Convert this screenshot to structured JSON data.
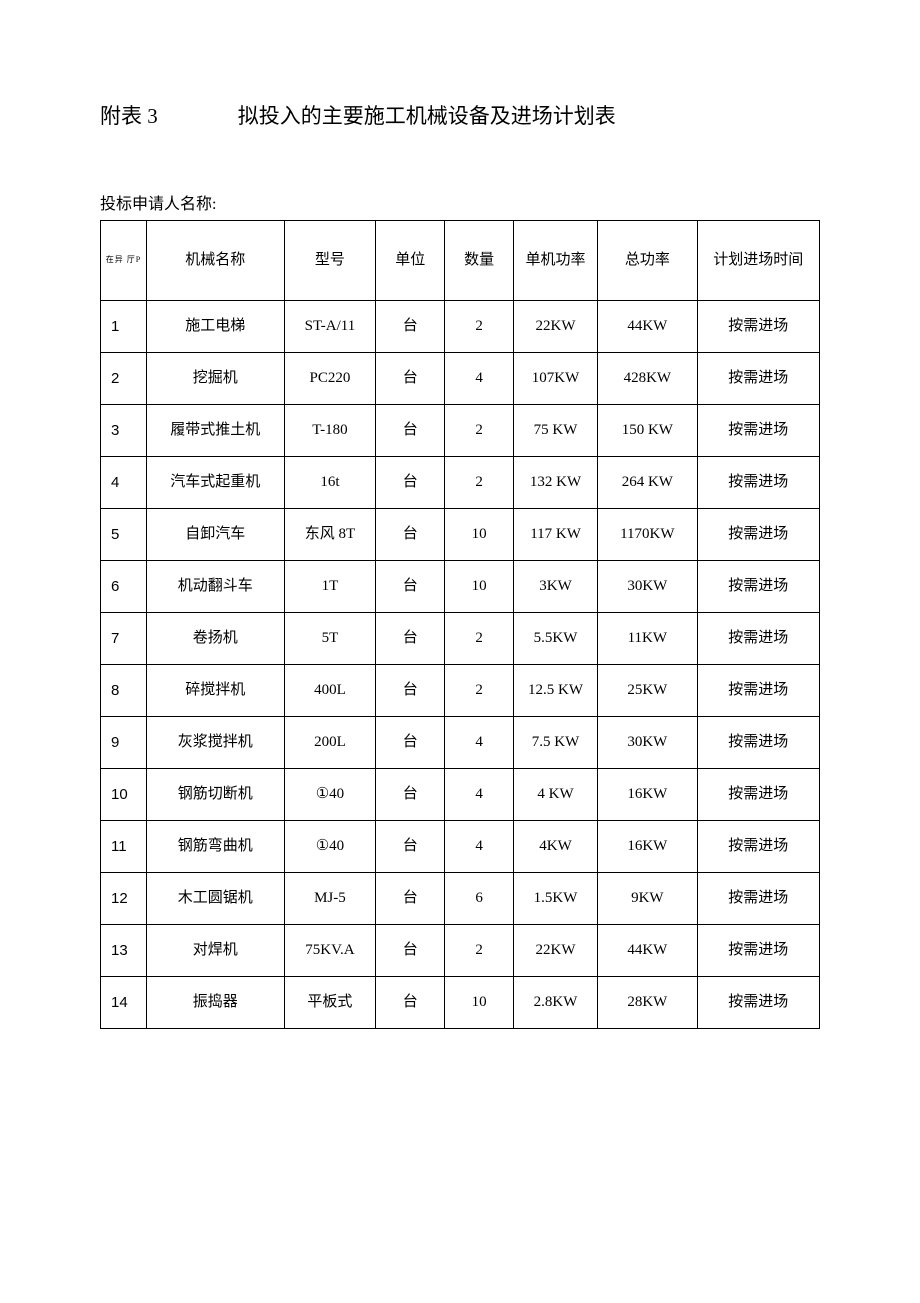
{
  "title": {
    "prefix": "附表 3",
    "main": "拟投入的主要施工机械设备及进场计划表"
  },
  "subtitle": "投标申请人名称:",
  "table": {
    "columns": [
      {
        "key": "seq",
        "label": "在异 厅P",
        "class": "col-seq seq-header"
      },
      {
        "key": "name",
        "label": "机械名称",
        "class": "col-name"
      },
      {
        "key": "model",
        "label": "型号",
        "class": "col-model"
      },
      {
        "key": "unit",
        "label": "单位",
        "class": "col-unit"
      },
      {
        "key": "qty",
        "label": "数量",
        "class": "col-qty"
      },
      {
        "key": "power",
        "label": "单机功率",
        "class": "col-power"
      },
      {
        "key": "total",
        "label": "总功率",
        "class": "col-total"
      },
      {
        "key": "plan",
        "label": "计划进场时间",
        "class": "col-plan"
      }
    ],
    "rows": [
      {
        "seq": "1",
        "name": "施工电梯",
        "model": "ST-A/11",
        "unit": "台",
        "qty": "2",
        "power": "22KW",
        "total": "44KW",
        "plan": "按需进场"
      },
      {
        "seq": "2",
        "name": "挖掘机",
        "model": "PC220",
        "unit": "台",
        "qty": "4",
        "power": "107KW",
        "total": "428KW",
        "plan": "按需进场"
      },
      {
        "seq": "3",
        "name": "履带式推土机",
        "model": "T-180",
        "unit": "台",
        "qty": "2",
        "power": "75 KW",
        "total": "150 KW",
        "plan": "按需进场"
      },
      {
        "seq": "4",
        "name": "汽车式起重机",
        "model": "16t",
        "unit": "台",
        "qty": "2",
        "power": "132 KW",
        "total": "264 KW",
        "plan": "按需进场"
      },
      {
        "seq": "5",
        "name": "自卸汽车",
        "model": "东风 8T",
        "unit": "台",
        "qty": "10",
        "power": "117 KW",
        "total": "1170KW",
        "plan": "按需进场"
      },
      {
        "seq": "6",
        "name": "机动翻斗车",
        "model": "1T",
        "unit": "台",
        "qty": "10",
        "power": "3KW",
        "total": "30KW",
        "plan": "按需进场"
      },
      {
        "seq": "7",
        "name": "卷扬机",
        "model": "5T",
        "unit": "台",
        "qty": "2",
        "power": "5.5KW",
        "total": "11KW",
        "plan": "按需进场"
      },
      {
        "seq": "8",
        "name": "碎搅拌机",
        "model": "400L",
        "unit": "台",
        "qty": "2",
        "power": "12.5 KW",
        "total": "25KW",
        "plan": "按需进场"
      },
      {
        "seq": "9",
        "name": "灰浆搅拌机",
        "model": "200L",
        "unit": "台",
        "qty": "4",
        "power": "7.5 KW",
        "total": "30KW",
        "plan": "按需进场"
      },
      {
        "seq": "10",
        "name": "钢筋切断机",
        "model": "①40",
        "unit": "台",
        "qty": "4",
        "power": "4 KW",
        "total": "16KW",
        "plan": "按需进场"
      },
      {
        "seq": "11",
        "name": "钢筋弯曲机",
        "model": "①40",
        "unit": "台",
        "qty": "4",
        "power": "4KW",
        "total": "16KW",
        "plan": "按需进场"
      },
      {
        "seq": "12",
        "name": "木工圆锯机",
        "model": "MJ-5",
        "unit": "台",
        "qty": "6",
        "power": "1.5KW",
        "total": "9KW",
        "plan": "按需进场"
      },
      {
        "seq": "13",
        "name": "对焊机",
        "model": "75KV.A",
        "unit": "台",
        "qty": "2",
        "power": "22KW",
        "total": "44KW",
        "plan": "按需进场"
      },
      {
        "seq": "14",
        "name": "振捣器",
        "model": "平板式",
        "unit": "台",
        "qty": "10",
        "power": "2.8KW",
        "total": "28KW",
        "plan": "按需进场"
      }
    ]
  },
  "styling": {
    "background_color": "#ffffff",
    "border_color": "#000000",
    "text_color": "#000000",
    "title_fontsize": 21,
    "body_fontsize": 15,
    "subtitle_fontsize": 16
  }
}
